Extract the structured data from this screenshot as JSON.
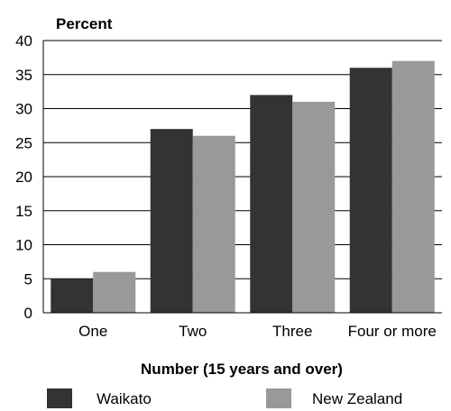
{
  "chart_data": {
    "type": "bar",
    "title": "",
    "ylabel": "Percent",
    "xlabel": "Number (15 years and over)",
    "categories": [
      "One",
      "Two",
      "Three",
      "Four or more"
    ],
    "series": [
      {
        "name": "Waikato",
        "color": "#333333",
        "values": [
          5,
          27,
          32,
          36
        ]
      },
      {
        "name": "New Zealand",
        "color": "#999999",
        "values": [
          6,
          26,
          31,
          37
        ]
      }
    ],
    "ylim": [
      0,
      40
    ],
    "yticks": [
      0,
      5,
      10,
      15,
      20,
      25,
      30,
      35,
      40
    ],
    "grid": true,
    "legend": "bottom"
  }
}
